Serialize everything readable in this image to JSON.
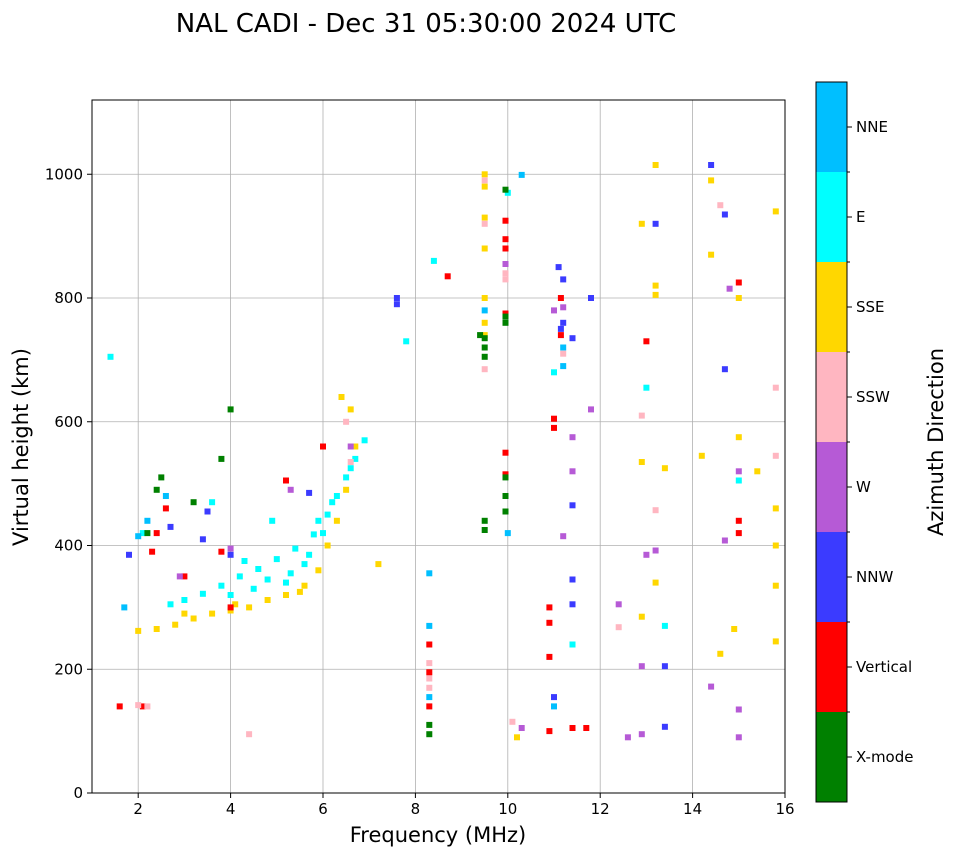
{
  "chart_data": {
    "type": "scatter",
    "title": "NAL CADI - Dec 31 05:30:00 2024 UTC",
    "xlabel": "Frequency (MHz)",
    "ylabel": "Virtual height (km)",
    "xlim": [
      1,
      16
    ],
    "ylim": [
      0,
      1120
    ],
    "xticks": [
      2,
      4,
      6,
      8,
      10,
      12,
      14,
      16
    ],
    "yticks": [
      0,
      200,
      400,
      600,
      800,
      1000
    ],
    "grid": true,
    "colorbar": {
      "label": "Azimuth Direction",
      "categories": [
        {
          "name": "X-mode",
          "color": "#008000"
        },
        {
          "name": "Vertical",
          "color": "#ff0000"
        },
        {
          "name": "NNW",
          "color": "#3b3bff"
        },
        {
          "name": "W",
          "color": "#b65ad6"
        },
        {
          "name": "SSW",
          "color": "#ffb6c1"
        },
        {
          "name": "SSE",
          "color": "#ffd700"
        },
        {
          "name": "E",
          "color": "#00ffff"
        },
        {
          "name": "NNE",
          "color": "#00bfff"
        }
      ]
    },
    "series": [
      {
        "name": "E",
        "points": [
          [
            3.0,
            312
          ],
          [
            3.4,
            322
          ],
          [
            3.8,
            335
          ],
          [
            4.2,
            350
          ],
          [
            4.6,
            362
          ],
          [
            5.0,
            378
          ],
          [
            5.4,
            395
          ],
          [
            5.8,
            418
          ],
          [
            6.1,
            450
          ],
          [
            6.3,
            480
          ],
          [
            6.5,
            510
          ],
          [
            6.7,
            540
          ],
          [
            6.9,
            570
          ],
          [
            2.7,
            305
          ],
          [
            4.0,
            320
          ],
          [
            5.2,
            340
          ],
          [
            5.6,
            370
          ],
          [
            6.0,
            420
          ],
          [
            6.2,
            470
          ],
          [
            6.6,
            525
          ],
          [
            4.5,
            330
          ],
          [
            4.8,
            345
          ],
          [
            5.7,
            385
          ],
          [
            1.4,
            705
          ],
          [
            10.0,
            970
          ],
          [
            11.0,
            680
          ],
          [
            13.0,
            655
          ],
          [
            8.4,
            860
          ],
          [
            7.8,
            730
          ],
          [
            13.4,
            270
          ],
          [
            15.0,
            505
          ],
          [
            2.1,
            420
          ],
          [
            5.9,
            440
          ],
          [
            5.3,
            355
          ],
          [
            4.3,
            375
          ],
          [
            3.6,
            470
          ],
          [
            4.9,
            440
          ],
          [
            11.4,
            240
          ]
        ]
      },
      {
        "name": "SSE",
        "points": [
          [
            2.0,
            262
          ],
          [
            2.4,
            265
          ],
          [
            2.8,
            272
          ],
          [
            3.2,
            282
          ],
          [
            3.6,
            290
          ],
          [
            4.0,
            295
          ],
          [
            4.4,
            300
          ],
          [
            4.8,
            312
          ],
          [
            5.2,
            320
          ],
          [
            5.6,
            335
          ],
          [
            5.9,
            360
          ],
          [
            6.1,
            400
          ],
          [
            6.3,
            440
          ],
          [
            6.5,
            490
          ],
          [
            6.7,
            560
          ],
          [
            6.6,
            620
          ],
          [
            6.4,
            640
          ],
          [
            9.5,
            1000
          ],
          [
            9.5,
            980
          ],
          [
            9.5,
            930
          ],
          [
            9.5,
            880
          ],
          [
            9.5,
            800
          ],
          [
            9.5,
            760
          ],
          [
            9.5,
            740
          ],
          [
            12.9,
            920
          ],
          [
            13.2,
            1015
          ],
          [
            14.4,
            990
          ],
          [
            14.4,
            870
          ],
          [
            15.0,
            800
          ],
          [
            15.8,
            940
          ],
          [
            13.2,
            820
          ],
          [
            13.2,
            805
          ],
          [
            15.0,
            575
          ],
          [
            15.4,
            520
          ],
          [
            15.8,
            460
          ],
          [
            15.8,
            400
          ],
          [
            15.8,
            335
          ],
          [
            15.8,
            245
          ],
          [
            12.9,
            285
          ],
          [
            13.2,
            340
          ],
          [
            10.2,
            90
          ],
          [
            14.6,
            225
          ],
          [
            14.9,
            265
          ],
          [
            12.9,
            535
          ],
          [
            13.4,
            525
          ],
          [
            14.2,
            545
          ],
          [
            4.1,
            305
          ],
          [
            5.5,
            325
          ],
          [
            3.0,
            290
          ],
          [
            7.2,
            370
          ]
        ]
      },
      {
        "name": "Vertical",
        "points": [
          [
            9.95,
            895
          ],
          [
            9.95,
            880
          ],
          [
            9.95,
            925
          ],
          [
            9.95,
            550
          ],
          [
            11.0,
            590
          ],
          [
            11.0,
            605
          ],
          [
            10.9,
            300
          ],
          [
            10.9,
            275
          ],
          [
            10.9,
            220
          ],
          [
            10.9,
            100
          ],
          [
            11.4,
            105
          ],
          [
            11.7,
            105
          ],
          [
            8.3,
            240
          ],
          [
            8.3,
            195
          ],
          [
            8.3,
            140
          ],
          [
            8.7,
            835
          ],
          [
            15.0,
            440
          ],
          [
            15.0,
            420
          ],
          [
            15.0,
            825
          ],
          [
            13.0,
            730
          ],
          [
            2.3,
            390
          ],
          [
            2.6,
            460
          ],
          [
            2.4,
            420
          ],
          [
            1.6,
            140
          ],
          [
            2.1,
            140
          ],
          [
            3.0,
            350
          ],
          [
            3.8,
            390
          ],
          [
            4.0,
            300
          ],
          [
            5.2,
            505
          ],
          [
            6.0,
            560
          ],
          [
            9.95,
            515
          ],
          [
            9.95,
            775
          ],
          [
            11.15,
            800
          ],
          [
            11.15,
            740
          ]
        ]
      },
      {
        "name": "NNW",
        "points": [
          [
            7.6,
            800
          ],
          [
            7.6,
            790
          ],
          [
            11.2,
            830
          ],
          [
            11.2,
            760
          ],
          [
            11.4,
            735
          ],
          [
            11.4,
            465
          ],
          [
            11.4,
            345
          ],
          [
            11.4,
            305
          ],
          [
            11.0,
            155
          ],
          [
            13.4,
            205
          ],
          [
            13.4,
            107
          ],
          [
            14.4,
            1015
          ],
          [
            14.7,
            935
          ],
          [
            14.7,
            685
          ],
          [
            13.2,
            920
          ],
          [
            11.1,
            850
          ],
          [
            4.0,
            385
          ],
          [
            3.4,
            410
          ],
          [
            2.7,
            430
          ],
          [
            1.8,
            385
          ],
          [
            3.5,
            455
          ],
          [
            5.7,
            485
          ],
          [
            11.8,
            800
          ],
          [
            11.15,
            750
          ]
        ]
      },
      {
        "name": "W",
        "points": [
          [
            12.4,
            305
          ],
          [
            13.0,
            385
          ],
          [
            13.2,
            392
          ],
          [
            12.9,
            205
          ],
          [
            12.9,
            95
          ],
          [
            12.6,
            90
          ],
          [
            14.4,
            172
          ],
          [
            15.0,
            135
          ],
          [
            15.0,
            90
          ],
          [
            15.0,
            520
          ],
          [
            14.7,
            408
          ],
          [
            14.8,
            815
          ],
          [
            11.2,
            785
          ],
          [
            11.4,
            520
          ],
          [
            11.4,
            575
          ],
          [
            10.3,
            105
          ],
          [
            11.8,
            620
          ],
          [
            11.2,
            415
          ],
          [
            9.95,
            855
          ],
          [
            11.0,
            780
          ],
          [
            4.0,
            395
          ],
          [
            2.9,
            350
          ],
          [
            6.6,
            560
          ],
          [
            5.3,
            490
          ]
        ]
      },
      {
        "name": "SSW",
        "points": [
          [
            9.5,
            990
          ],
          [
            9.5,
            920
          ],
          [
            9.5,
            685
          ],
          [
            9.95,
            840
          ],
          [
            9.95,
            830
          ],
          [
            8.3,
            185
          ],
          [
            8.3,
            210
          ],
          [
            8.3,
            170
          ],
          [
            10.1,
            115
          ],
          [
            12.4,
            268
          ],
          [
            12.9,
            610
          ],
          [
            13.2,
            457
          ],
          [
            14.6,
            950
          ],
          [
            15.8,
            655
          ],
          [
            15.8,
            545
          ],
          [
            2.0,
            142
          ],
          [
            4.4,
            95
          ],
          [
            2.2,
            140
          ],
          [
            6.5,
            600
          ],
          [
            6.6,
            535
          ],
          [
            11.2,
            710
          ]
        ]
      },
      {
        "name": "X-mode",
        "points": [
          [
            9.5,
            735
          ],
          [
            9.5,
            720
          ],
          [
            9.5,
            705
          ],
          [
            9.5,
            440
          ],
          [
            9.5,
            425
          ],
          [
            9.95,
            975
          ],
          [
            9.95,
            770
          ],
          [
            9.95,
            760
          ],
          [
            9.95,
            480
          ],
          [
            9.95,
            455
          ],
          [
            8.3,
            110
          ],
          [
            8.3,
            95
          ],
          [
            4.0,
            620
          ],
          [
            3.8,
            540
          ],
          [
            2.2,
            420
          ],
          [
            2.5,
            510
          ],
          [
            2.4,
            490
          ],
          [
            3.2,
            470
          ],
          [
            9.95,
            510
          ],
          [
            9.4,
            740
          ]
        ]
      },
      {
        "name": "NNE",
        "points": [
          [
            8.3,
            355
          ],
          [
            8.3,
            270
          ],
          [
            8.3,
            155
          ],
          [
            9.5,
            780
          ],
          [
            10.0,
            420
          ],
          [
            11.2,
            720
          ],
          [
            11.2,
            690
          ],
          [
            2.0,
            415
          ],
          [
            2.2,
            440
          ],
          [
            1.7,
            300
          ],
          [
            2.6,
            480
          ],
          [
            11.0,
            140
          ],
          [
            10.3,
            999
          ]
        ]
      }
    ]
  }
}
